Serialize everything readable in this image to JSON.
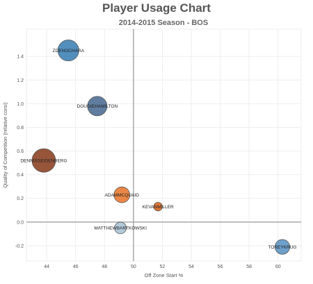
{
  "chart_data": {
    "type": "scatter",
    "title": "Player Usage Chart",
    "subtitle": "2014-2015 Season - BOS",
    "xlabel": "Off Zone Start %",
    "ylabel": "Quality of Competition (relative corsi)",
    "xlim": [
      42.6,
      61.6
    ],
    "ylim": [
      -0.33,
      1.63
    ],
    "x_ticks": [
      "44",
      "46",
      "48",
      "50",
      "52",
      "54",
      "56",
      "58",
      "60"
    ],
    "y_ticks": [
      "-0.2",
      "0.0",
      "0.2",
      "0.4",
      "0.6",
      "0.8",
      "1.0",
      "1.2",
      "1.4"
    ],
    "x_reference": 50,
    "y_reference": 0,
    "grid": true,
    "points": [
      {
        "label": "ZDENOCHARA",
        "x": 45.5,
        "y": 1.45,
        "size": 3.0,
        "color": "#3a7fb4"
      },
      {
        "label": "DOUGIEHAMILTON",
        "x": 47.5,
        "y": 0.98,
        "size": 2.7,
        "color": "#4a6b92"
      },
      {
        "label": "DENNISSEIDENBERG",
        "x": 43.8,
        "y": 0.52,
        "size": 3.5,
        "color": "#8a3e1f"
      },
      {
        "label": "ADAMMCQUAID",
        "x": 49.2,
        "y": 0.23,
        "size": 2.0,
        "color": "#e8762c"
      },
      {
        "label": "KEVANMILLER",
        "x": 51.7,
        "y": 0.13,
        "size": 0.6,
        "color": "#d8641e"
      },
      {
        "label": "MATTHEWBARTKOWSKI",
        "x": 49.1,
        "y": -0.05,
        "size": 1.2,
        "color": "#a9c4d6"
      },
      {
        "label": "TOREYKRUG",
        "x": 60.3,
        "y": -0.21,
        "size": 1.8,
        "color": "#5b93c4"
      }
    ]
  }
}
